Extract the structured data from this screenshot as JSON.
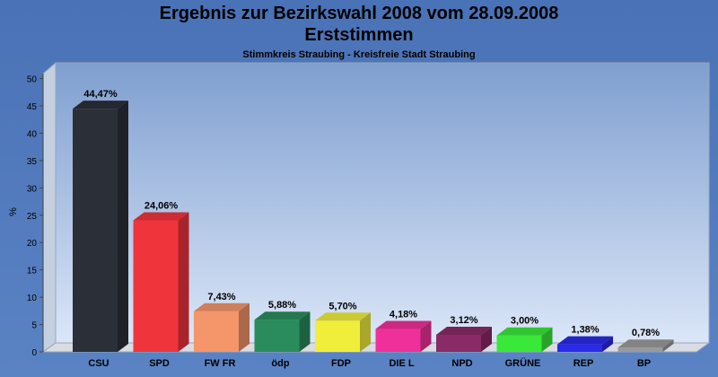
{
  "chart_data": {
    "type": "bar",
    "title": "Ergebnis zur Bezirkswahl 2008 vom 28.09.2008",
    "title2": "Erststimmen",
    "subtitle": "Stimmkreis Straubing - Kreisfreie Stadt Straubing",
    "ylabel": "%",
    "xlabel": "",
    "ylim": [
      0,
      50
    ],
    "yticks": [
      0,
      5,
      10,
      15,
      20,
      25,
      30,
      35,
      40,
      45,
      50
    ],
    "grid": false,
    "categories": [
      "CSU",
      "SPD",
      "FW FR",
      "ödp",
      "FDP",
      "DIE L",
      "NPD",
      "GRÜNE",
      "REP",
      "BP"
    ],
    "values": [
      44.47,
      24.06,
      7.43,
      5.88,
      5.7,
      4.18,
      3.12,
      3.0,
      1.38,
      0.78
    ],
    "value_labels": [
      "44,47%",
      "24,06%",
      "7,43%",
      "5,88%",
      "5,70%",
      "4,18%",
      "3,12%",
      "3,00%",
      "1,38%",
      "0,78%"
    ],
    "colors": [
      "#2b2f38",
      "#f0343c",
      "#f4956a",
      "#2a8c5c",
      "#f0ee3a",
      "#f0309a",
      "#8a2a66",
      "#3ae83a",
      "#2a2ae8",
      "#9a9a9a"
    ]
  }
}
